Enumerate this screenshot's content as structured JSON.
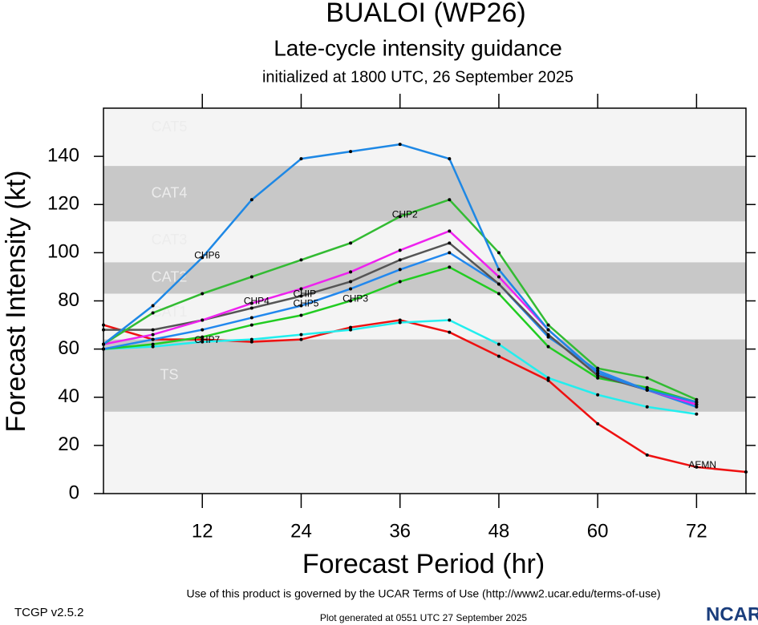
{
  "chart_data": {
    "type": "line",
    "title": "BUALOI (WP26)",
    "subtitle": "Late-cycle intensity guidance",
    "initialized": "initialized at 1800 UTC, 26 September 2025",
    "x_label": "Forecast Period (hr)",
    "y_label": "Forecast Intensity (kt)",
    "xlim": [
      0,
      78
    ],
    "ylim": [
      0,
      160
    ],
    "xticks": [
      12,
      24,
      36,
      48,
      60,
      72
    ],
    "yticks": [
      0,
      20,
      40,
      60,
      80,
      100,
      120,
      140
    ],
    "x": [
      0,
      6,
      12,
      18,
      24,
      30,
      36,
      42,
      48,
      54,
      60,
      66,
      72,
      78
    ],
    "bands": [
      {
        "label": "TS",
        "from": 34,
        "to": 64,
        "shaded": true
      },
      {
        "label": "CAT1",
        "from": 64,
        "to": 83,
        "shaded": false
      },
      {
        "label": "CAT2",
        "from": 83,
        "to": 96,
        "shaded": true
      },
      {
        "label": "CAT3",
        "from": 96,
        "to": 113,
        "shaded": false
      },
      {
        "label": "CAT4",
        "from": 113,
        "to": 136,
        "shaded": true
      },
      {
        "label": "CAT5",
        "from": 136,
        "to": 160,
        "shaded": false
      }
    ],
    "band_colors": {
      "shaded": "#c8c8c8",
      "plain": "#f4f4f4"
    },
    "series": [
      {
        "name": "AEMN",
        "color": "#ee1111",
        "values": [
          70,
          64,
          64,
          63,
          64,
          69,
          72,
          67,
          57,
          47,
          29,
          16,
          11,
          9
        ]
      },
      {
        "name": "CHP7",
        "color": "#22eeee",
        "values": [
          60,
          61,
          63,
          64,
          66,
          68,
          71,
          72,
          62,
          48,
          41,
          36,
          33,
          null
        ]
      },
      {
        "name": "CHP3",
        "color": "#22cc22",
        "values": [
          60,
          62,
          65,
          70,
          74,
          80,
          88,
          94,
          83,
          61,
          48,
          44,
          38,
          null
        ]
      },
      {
        "name": "CHP5",
        "color": "#2288ee",
        "values": [
          60,
          64,
          68,
          73,
          78,
          85,
          93,
          100,
          87,
          65,
          51,
          43,
          36,
          null
        ]
      },
      {
        "name": "CHIP",
        "color": "#555555",
        "values": [
          68,
          68,
          72,
          77,
          82,
          88,
          97,
          104,
          87,
          66,
          49,
          43,
          37,
          null
        ]
      },
      {
        "name": "CHP4",
        "color": "#ee22ee",
        "values": [
          62,
          66,
          72,
          79,
          85,
          92,
          101,
          109,
          90,
          68,
          50,
          43,
          37,
          null
        ]
      },
      {
        "name": "CHP2",
        "color": "#33bb33",
        "values": [
          62,
          75,
          83,
          90,
          97,
          104,
          115,
          122,
          100,
          70,
          52,
          48,
          39,
          null
        ]
      },
      {
        "name": "CHP6",
        "color": "#1e88e5",
        "values": [
          62,
          78,
          98,
          122,
          139,
          142,
          145,
          139,
          93,
          68,
          50,
          43,
          38,
          null
        ]
      }
    ],
    "footer_terms": "Use of this product is governed by the UCAR Terms of Use (http://www2.ucar.edu/terms-of-use)",
    "footer_version": "TCGP v2.5.2",
    "footer_generated": "Plot generated at 0551 UTC   27 September 2025",
    "logo": "NCAR"
  }
}
